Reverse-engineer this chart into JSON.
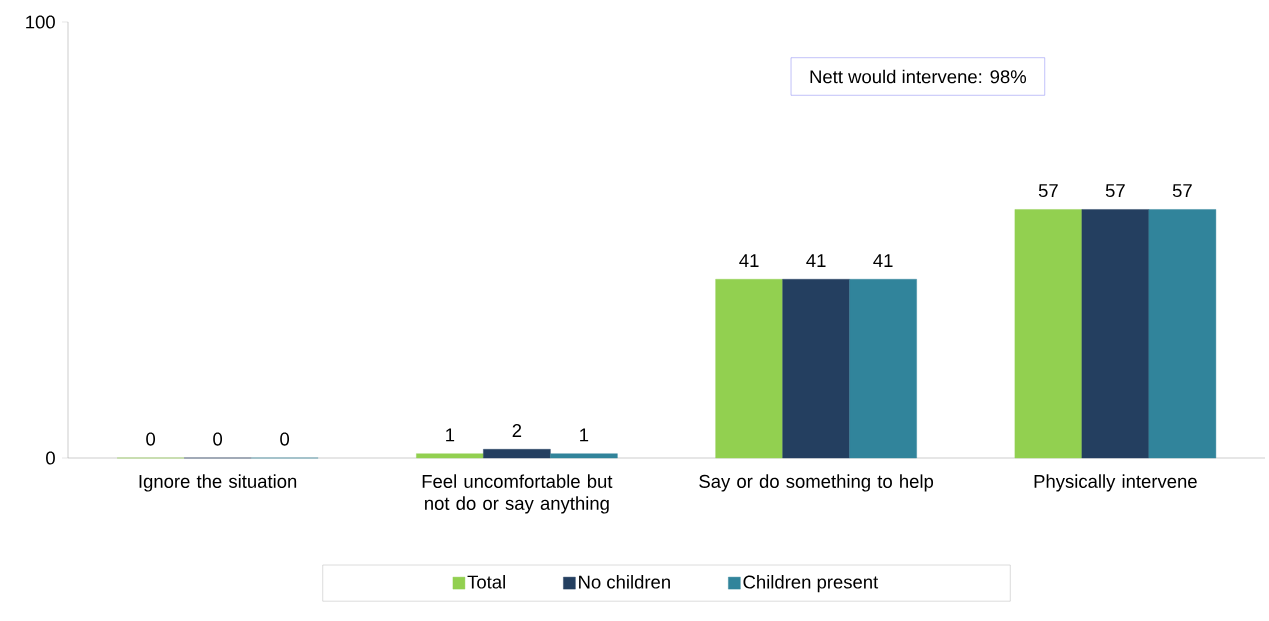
{
  "chart_data": {
    "type": "bar",
    "categories": [
      "Ignore the situation",
      "Feel uncomfortable but not do or say anything",
      "Say or do something to help",
      "Physically intervene"
    ],
    "series": [
      {
        "name": "Total",
        "color": "#92d050",
        "values": [
          0,
          1,
          41,
          57
        ]
      },
      {
        "name": "No children",
        "color": "#243f60",
        "values": [
          0,
          2,
          41,
          57
        ]
      },
      {
        "name": "Children present",
        "color": "#31849b",
        "values": [
          0,
          1,
          41,
          57
        ]
      }
    ],
    "ylim": [
      0,
      100
    ],
    "yticks": [
      0,
      100
    ],
    "grid": false,
    "legend": "bottom",
    "data_labels": true,
    "annotations": [
      "Nett would intervene: 98%"
    ]
  }
}
